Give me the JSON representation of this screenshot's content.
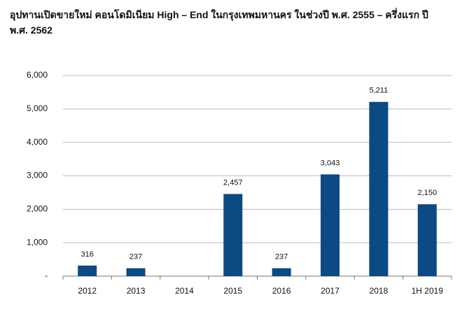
{
  "chart_data": {
    "type": "bar",
    "title": "อุปทานเปิดขายใหม่ คอนโดมิเนียม High – End ในกรุงเทพมหานคร ในช่วงปี พ.ศ. 2555 – ครึ่งแรก ปี พ.ศ. 2562",
    "categories": [
      "2012",
      "2013",
      "2014",
      "2015",
      "2016",
      "2017",
      "2018",
      "1H 2019"
    ],
    "values": [
      316,
      237,
      null,
      2457,
      237,
      3043,
      5211,
      2150
    ],
    "value_labels": [
      "316",
      "237",
      null,
      "2,457",
      "237",
      "3,043",
      "5,211",
      "2,150"
    ],
    "color": "#0b4a83",
    "ylim": [
      0,
      6000
    ],
    "yticks": [
      {
        "value": 0,
        "label": "-"
      },
      {
        "value": 1000,
        "label": "1,000"
      },
      {
        "value": 2000,
        "label": "2,000"
      },
      {
        "value": 3000,
        "label": "3,000"
      },
      {
        "value": 4000,
        "label": "4,000"
      },
      {
        "value": 5000,
        "label": "5,000"
      },
      {
        "value": 6000,
        "label": "6,000"
      }
    ],
    "grid": true
  }
}
